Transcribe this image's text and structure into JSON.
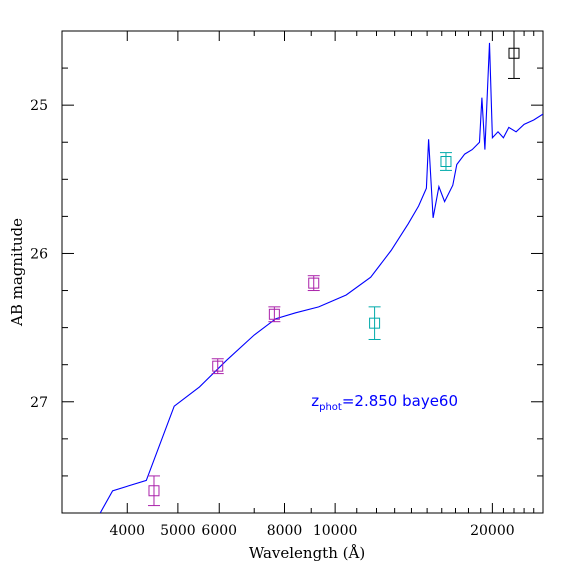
{
  "chart_data": {
    "type": "scatter",
    "title": "",
    "xlabel": "Wavelength (Å)",
    "ylabel": "AB magnitude",
    "xscale": "log",
    "xlim": [
      3000,
      25000
    ],
    "ylim": [
      27.75,
      24.5
    ],
    "y_inverted": true,
    "x_tick_labels": [
      "4000",
      "5000",
      "6000",
      "8000",
      "10000",
      "20000"
    ],
    "x_ticks": [
      4000,
      5000,
      6000,
      8000,
      10000,
      20000
    ],
    "y_tick_labels": [
      "25",
      "26",
      "27"
    ],
    "y_ticks": [
      25,
      26,
      27
    ],
    "annotation": {
      "text_main": "z",
      "text_sub": "phot",
      "text_rest": "=2.850 baye60",
      "x": 9000,
      "y": 27.03,
      "color": "#0000ff"
    },
    "model_curve": {
      "color": "#0000ff",
      "points": [
        [
          3550,
          27.75
        ],
        [
          3750,
          27.6
        ],
        [
          4350,
          27.53
        ],
        [
          4920,
          27.03
        ],
        [
          5500,
          26.9
        ],
        [
          6200,
          26.72
        ],
        [
          7000,
          26.55
        ],
        [
          7700,
          26.44
        ],
        [
          8400,
          26.4
        ],
        [
          9300,
          26.36
        ],
        [
          10500,
          26.28
        ],
        [
          11700,
          26.16
        ],
        [
          12800,
          25.98
        ],
        [
          13800,
          25.8
        ],
        [
          14450,
          25.68
        ],
        [
          14950,
          25.56
        ],
        [
          15100,
          25.23
        ],
        [
          15400,
          25.76
        ],
        [
          15800,
          25.55
        ],
        [
          16200,
          25.65
        ],
        [
          16800,
          25.54
        ],
        [
          17100,
          25.4
        ],
        [
          17700,
          25.33
        ],
        [
          18300,
          25.3
        ],
        [
          18900,
          25.25
        ],
        [
          19100,
          24.95
        ],
        [
          19350,
          25.3
        ],
        [
          19750,
          24.58
        ],
        [
          20000,
          25.22
        ],
        [
          20500,
          25.18
        ],
        [
          21000,
          25.22
        ],
        [
          21500,
          25.15
        ],
        [
          22200,
          25.18
        ],
        [
          23000,
          25.13
        ],
        [
          24000,
          25.1
        ],
        [
          25000,
          25.06
        ]
      ]
    },
    "series": [
      {
        "color": "#aa22aa",
        "points": [
          {
            "x": 4500,
            "y": 27.6,
            "err": 0.1
          },
          {
            "x": 5960,
            "y": 26.76,
            "err": 0.05
          },
          {
            "x": 7650,
            "y": 26.41,
            "err": 0.05
          },
          {
            "x": 9100,
            "y": 26.2,
            "err": 0.05
          }
        ]
      },
      {
        "color": "#00aaaa",
        "points": [
          {
            "x": 11900,
            "y": 26.47,
            "err": 0.11
          },
          {
            "x": 16300,
            "y": 25.38,
            "err": 0.06
          }
        ]
      },
      {
        "color": "#000000",
        "points": [
          {
            "x": 22000,
            "y": 24.65,
            "err": 0.17
          }
        ]
      }
    ],
    "grid": false,
    "legend": "none"
  }
}
